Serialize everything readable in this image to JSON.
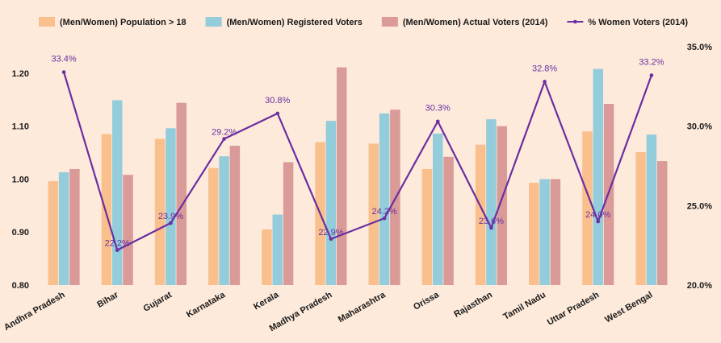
{
  "chart_data": {
    "type": "bar",
    "categories": [
      "Andhra Pradesh",
      "Bihar",
      "Gujarat",
      "Karnataka",
      "Kerala",
      "Madhya Pradesh",
      "Maharashtra",
      "Orissa",
      "Rajasthan",
      "Tamil Nadu",
      "Uttar Pradesh",
      "West Bengal"
    ],
    "series": [
      {
        "name": "(Men/Women) Population > 18",
        "type": "bar",
        "axis": "left",
        "color": "#f9c08e",
        "values": [
          0.996,
          1.085,
          1.076,
          1.021,
          0.905,
          1.07,
          1.067,
          1.019,
          1.065,
          0.993,
          1.09,
          1.051
        ]
      },
      {
        "name": "(Men/Women) Registered Voters",
        "type": "bar",
        "axis": "left",
        "color": "#93ccdb",
        "values": [
          1.013,
          1.149,
          1.096,
          1.043,
          0.933,
          1.11,
          1.124,
          1.086,
          1.113,
          1.0,
          1.208,
          1.084
        ]
      },
      {
        "name": "(Men/Women) Actual Voters (2014)",
        "type": "bar",
        "axis": "left",
        "color": "#d99a98",
        "values": [
          1.019,
          1.008,
          1.144,
          1.063,
          1.032,
          1.211,
          1.131,
          1.042,
          1.1,
          1.0,
          1.142,
          1.034
        ]
      },
      {
        "name": "% Women Voters (2014)",
        "type": "line",
        "axis": "right",
        "color": "#6a2fa0",
        "values": [
          33.4,
          22.2,
          23.9,
          29.2,
          30.8,
          22.9,
          24.2,
          30.3,
          23.6,
          32.8,
          24.0,
          33.2
        ],
        "labels": [
          "33.4%",
          "22.2%",
          "23.9%",
          "29.2%",
          "30.8%",
          "22.9%",
          "24.2%",
          "30.3%",
          "23.6%",
          "32.8%",
          "24.0%",
          "33.2%"
        ]
      }
    ],
    "ylim": [
      0.8,
      1.25
    ],
    "y_ticks": [
      "0.80",
      "0.90",
      "1.00",
      "1.10",
      "1.20"
    ],
    "y2lim": [
      20.0,
      35.0
    ],
    "y2_ticks": [
      "20.0%",
      "25.0%",
      "30.0%",
      "35.0%"
    ],
    "legend_position": "top",
    "grid": false,
    "background": "#fdeadb"
  }
}
